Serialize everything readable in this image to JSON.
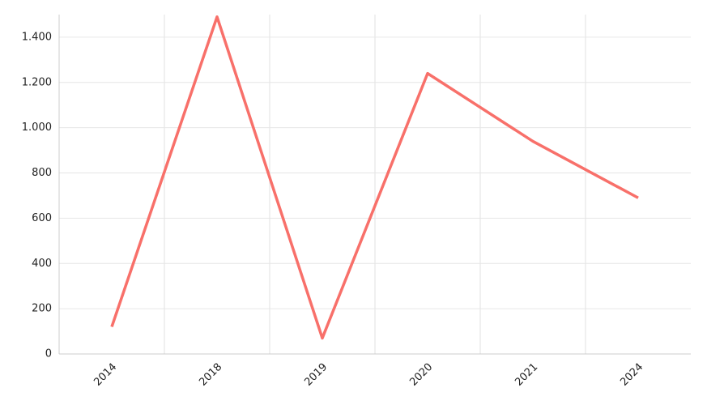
{
  "chart_data": {
    "type": "line",
    "categories": [
      "2014",
      "2018",
      "2019",
      "2020",
      "2021",
      "2024"
    ],
    "series": [
      {
        "color": "#f8706a",
        "values": [
          120,
          1490,
          70,
          1240,
          940,
          690
        ]
      }
    ],
    "ylim": [
      0,
      1500
    ],
    "yticks": [
      0,
      200,
      400,
      600,
      800,
      {
        "value": 1000,
        "label": "1.000"
      },
      {
        "value": 1200,
        "label": "1.200"
      },
      {
        "value": 1400,
        "label": "1.400"
      }
    ],
    "grid": true
  }
}
